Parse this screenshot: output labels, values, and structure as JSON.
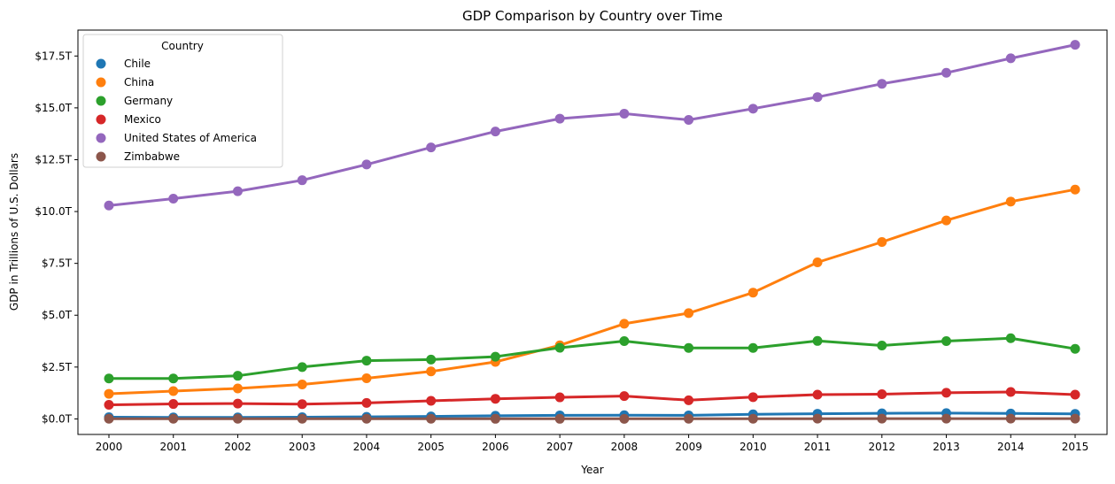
{
  "chart_data": {
    "type": "line",
    "title": "GDP Comparison by Country over Time",
    "xlabel": "Year",
    "ylabel": "GDP in Trillions of U.S. Dollars",
    "categories": [
      "2000",
      "2001",
      "2002",
      "2003",
      "2004",
      "2005",
      "2006",
      "2007",
      "2008",
      "2009",
      "2010",
      "2011",
      "2012",
      "2013",
      "2014",
      "2015"
    ],
    "y_ticks": [
      0,
      2.5,
      5,
      7.5,
      10,
      12.5,
      15,
      17.5
    ],
    "y_tick_labels": [
      "$0.0T",
      "$2.5T",
      "$5.0T",
      "$7.5T",
      "$10.0T",
      "$12.5T",
      "$15.0T",
      "$17.5T"
    ],
    "ylim": [
      -0.75,
      18.75
    ],
    "grid": false,
    "legend": {
      "title": "Country",
      "placement": "top-left"
    },
    "series": [
      {
        "name": "Chile",
        "color": "#1f77b4",
        "values": [
          0.08,
          0.07,
          0.07,
          0.08,
          0.1,
          0.12,
          0.15,
          0.17,
          0.18,
          0.17,
          0.22,
          0.25,
          0.27,
          0.28,
          0.26,
          0.24
        ]
      },
      {
        "name": "China",
        "color": "#ff7f0e",
        "values": [
          1.21,
          1.34,
          1.47,
          1.66,
          1.96,
          2.29,
          2.75,
          3.55,
          4.59,
          5.1,
          6.09,
          7.55,
          8.53,
          9.57,
          10.48,
          11.06
        ]
      },
      {
        "name": "Germany",
        "color": "#2ca02c",
        "values": [
          1.95,
          1.95,
          2.08,
          2.5,
          2.81,
          2.86,
          3.0,
          3.43,
          3.75,
          3.42,
          3.42,
          3.76,
          3.54,
          3.75,
          3.89,
          3.38
        ]
      },
      {
        "name": "Mexico",
        "color": "#d62728",
        "values": [
          0.68,
          0.72,
          0.74,
          0.71,
          0.77,
          0.87,
          0.97,
          1.04,
          1.1,
          0.9,
          1.05,
          1.17,
          1.19,
          1.26,
          1.3,
          1.17
        ]
      },
      {
        "name": "United States of America",
        "color": "#9467bd",
        "values": [
          10.29,
          10.62,
          10.98,
          11.51,
          12.27,
          13.09,
          13.86,
          14.48,
          14.72,
          14.42,
          14.96,
          15.52,
          16.16,
          16.69,
          17.39,
          18.04
        ]
      },
      {
        "name": "Zimbabwe",
        "color": "#8c564b",
        "values": [
          0.007,
          0.007,
          0.006,
          0.006,
          0.006,
          0.006,
          0.005,
          0.005,
          0.004,
          0.008,
          0.009,
          0.011,
          0.012,
          0.013,
          0.014,
          0.014
        ]
      }
    ]
  }
}
